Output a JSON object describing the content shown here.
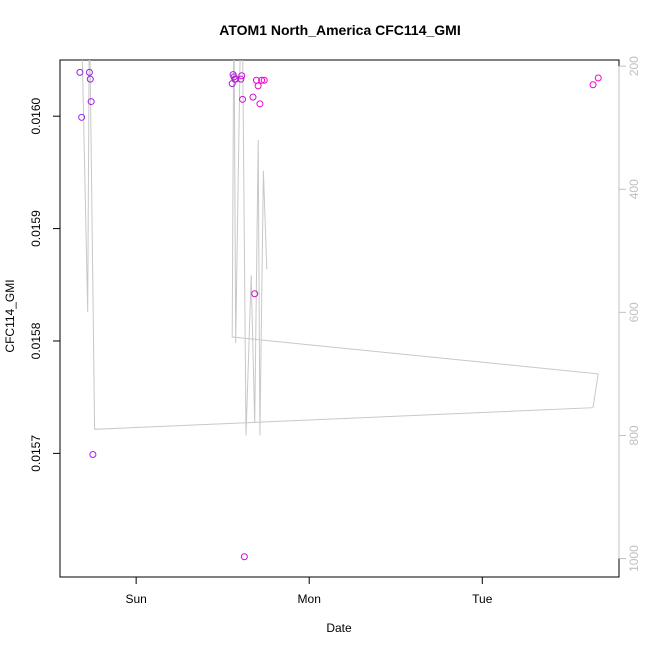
{
  "chart_data": {
    "type": "scatter",
    "title": "ATOM1 North_America CFC114_GMI",
    "xlabel": "Date",
    "ylabel": "CFC114_GMI",
    "x_ticks": [
      {
        "value": 0.0,
        "label": "Sun"
      },
      {
        "value": 1.0,
        "label": "Mon"
      },
      {
        "value": 2.0,
        "label": "Tue"
      }
    ],
    "xlim": [
      -0.44,
      2.79
    ],
    "y_ticks": [
      {
        "value": 0.0157,
        "label": "0.0157"
      },
      {
        "value": 0.0158,
        "label": "0.0158"
      },
      {
        "value": 0.0159,
        "label": "0.0159"
      },
      {
        "value": 0.016,
        "label": "0.0160"
      }
    ],
    "ylim": [
      0.01559,
      0.01605
    ],
    "right_axis": {
      "ticks": [
        {
          "value": 200,
          "label": "200"
        },
        {
          "value": 400,
          "label": "400"
        },
        {
          "value": 600,
          "label": "600"
        },
        {
          "value": 800,
          "label": "800"
        },
        {
          "value": 1000,
          "label": "1000"
        }
      ],
      "ylim": [
        1030,
        190
      ],
      "color": "#c0c0c0"
    },
    "series": [
      {
        "kind": "points",
        "color_start": "#8a2be2",
        "color_end": "#ff00cc",
        "x": [
          -0.325,
          -0.315,
          -0.27,
          -0.265,
          -0.26,
          -0.25,
          0.555,
          0.56,
          0.565,
          0.57,
          0.575,
          0.605,
          0.61,
          0.615,
          0.625,
          0.675,
          0.685,
          0.695,
          0.705,
          0.715,
          0.725,
          0.74,
          2.64,
          2.67
        ],
        "y": [
          0.016039,
          0.015999,
          0.016039,
          0.016033,
          0.016013,
          0.015699,
          0.016029,
          0.016037,
          0.016035,
          0.016033,
          0.016033,
          0.016033,
          0.016036,
          0.016015,
          0.015608,
          0.016017,
          0.015842,
          0.016032,
          0.016027,
          0.016011,
          0.016032,
          0.016032,
          0.016028,
          0.016034
        ]
      },
      {
        "kind": "line",
        "axis": "right",
        "color": "#c8c8c8",
        "x": [
          -0.33,
          -0.31,
          -0.28,
          -0.27,
          -0.24,
          2.64,
          2.67,
          0.555,
          0.565,
          0.575,
          0.605,
          0.615,
          0.635,
          0.665,
          0.685,
          0.705,
          0.715,
          0.735,
          0.755
        ],
        "y": [
          100,
          200,
          600,
          100,
          790,
          755,
          700,
          640,
          100,
          650,
          100,
          160,
          800,
          540,
          780,
          320,
          800,
          370,
          530
        ]
      }
    ]
  }
}
